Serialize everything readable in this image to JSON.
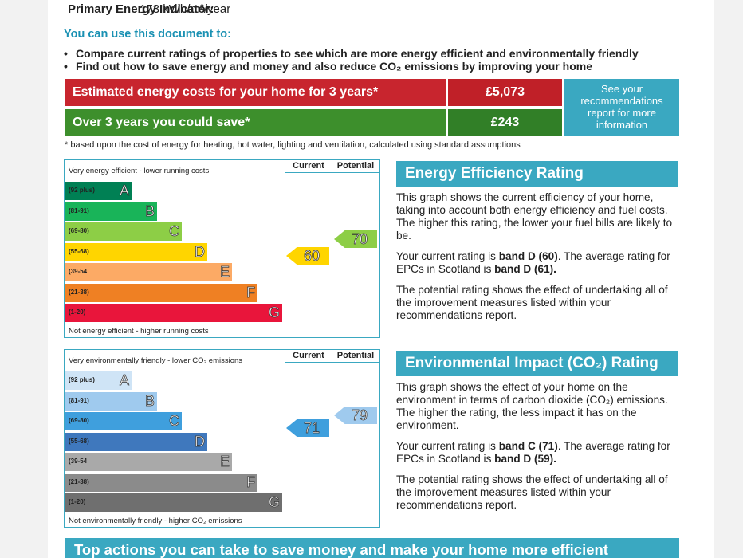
{
  "header": {
    "fields": [
      {
        "label": "Primary Energy Indicator:",
        "value": "173 kWh/m²/year"
      }
    ]
  },
  "uses": {
    "title": "You can use this document to:",
    "items": [
      "Compare current ratings of properties to see which are more energy efficient and environmentally friendly",
      "Find out how to save energy and money and also reduce CO₂ emissions by improving your home"
    ]
  },
  "costs": {
    "rows": [
      {
        "label": "Estimated energy costs for your home for 3 years*",
        "value": "£5,073",
        "color": "#c8252e",
        "value_color": "#c02028"
      },
      {
        "label": "Over 3 years you could save*",
        "value": "£243",
        "color": "#3d8f2c",
        "value_color": "#317f27"
      }
    ],
    "note": "See your recommendations report for more information",
    "footnote": "* based upon the cost of energy for heating, hot water, lighting and ventilation, calculated using standard assumptions"
  },
  "ratings": [
    {
      "top_label": "Very energy efficient - lower running costs",
      "bottom_label": "Not energy efficient - higher running costs",
      "columns": [
        "Current",
        "Potential"
      ],
      "current": 60,
      "potential": 70,
      "bands": [
        {
          "range": "(92 plus)",
          "letter": "A",
          "color": "#008054"
        },
        {
          "range": "(81-91)",
          "letter": "B",
          "color": "#19b459"
        },
        {
          "range": "(69-80)",
          "letter": "C",
          "color": "#8dce46"
        },
        {
          "range": "(55-68)",
          "letter": "D",
          "color": "#ffd500"
        },
        {
          "range": "(39-54",
          "letter": "E",
          "color": "#fcaa65"
        },
        {
          "range": "(21-38)",
          "letter": "F",
          "color": "#ef8023"
        },
        {
          "range": "(1-20)",
          "letter": "G",
          "color": "#e9153b"
        }
      ],
      "title": "Energy Efficiency Rating",
      "paragraphs": [
        [
          "This graph shows the current efficiency of your home, taking into account both energy efficiency and fuel costs. The higher this rating, the lower your fuel bills are likely to be."
        ],
        [
          "Your current rating is ",
          "band D (60)",
          ". The average rating for EPCs in Scotland is ",
          "band D (61)."
        ],
        [
          "The potential rating shows the effect of undertaking all of the improvement measures listed within your recommendations report."
        ]
      ]
    },
    {
      "top_label": "Very environmentally friendly - lower CO₂ emissions",
      "bottom_label": "Not environmentally friendly - higher CO₂ emissions",
      "columns": [
        "Current",
        "Potential"
      ],
      "current": 71,
      "potential": 79,
      "bands": [
        {
          "range": "(92 plus)",
          "letter": "A",
          "color": "#cfe4f6"
        },
        {
          "range": "(81-91)",
          "letter": "B",
          "color": "#9fcaee"
        },
        {
          "range": "(69-80)",
          "letter": "C",
          "color": "#3f9fdd"
        },
        {
          "range": "(55-68)",
          "letter": "D",
          "color": "#3f78bd"
        },
        {
          "range": "(39-54",
          "letter": "E",
          "color": "#a9a9a9"
        },
        {
          "range": "(21-38)",
          "letter": "F",
          "color": "#8b8b8b"
        },
        {
          "range": "(1-20)",
          "letter": "G",
          "color": "#6f6f6f"
        }
      ],
      "title": "Environmental Impact (CO₂) Rating",
      "paragraphs": [
        [
          "This graph shows the effect of your home on the environment in terms of carbon dioxide (CO₂) emissions. The higher the rating, the less impact it has on the environment."
        ],
        [
          "Your current rating is ",
          "band C (71)",
          ". The average rating for EPCs in Scotland is ",
          "band D (59)."
        ],
        [
          "The potential rating shows the effect of undertaking all of the improvement measures listed within your recommendations report."
        ]
      ]
    }
  ],
  "footer": {
    "banner": "Top actions you can take to save money and make your home more efficient"
  }
}
